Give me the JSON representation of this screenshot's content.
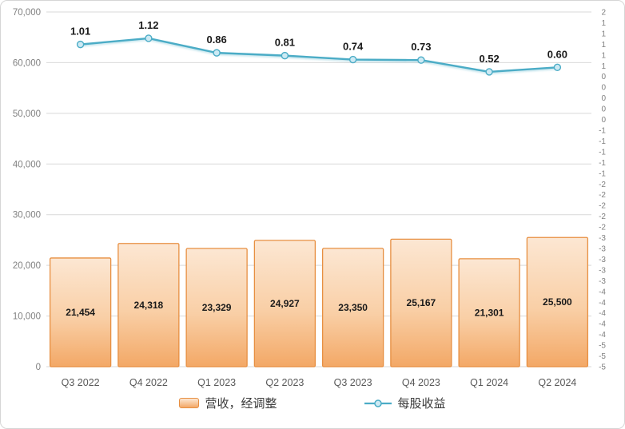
{
  "chart_data": {
    "type": "combo",
    "subtype": [
      "bar",
      "line"
    ],
    "title": "",
    "categories": [
      "Q3 2022",
      "Q4 2022",
      "Q1 2023",
      "Q2 2023",
      "Q3 2023",
      "Q4 2023",
      "Q1 2024",
      "Q2 2024"
    ],
    "series": [
      {
        "name": "营收，经调整",
        "type": "bar",
        "axis": "left",
        "values": [
          21454,
          24318,
          23329,
          24927,
          23350,
          25167,
          21301,
          25500
        ],
        "labels": [
          "21,454",
          "24,318",
          "23,329",
          "24,927",
          "23,350",
          "25,167",
          "21,301",
          "25,500"
        ]
      },
      {
        "name": "每股收益",
        "type": "line",
        "axis": "right",
        "values": [
          1.01,
          1.12,
          0.86,
          0.81,
          0.74,
          0.73,
          0.52,
          0.6
        ],
        "labels": [
          "1.01",
          "1.12",
          "0.86",
          "0.81",
          "0.74",
          "0.73",
          "0.52",
          "0.60"
        ]
      }
    ],
    "left_axis": {
      "min": 0,
      "max": 70000,
      "step": 10000,
      "tick_labels_top_to_bottom": [
        "70,000",
        "60,000",
        "50,000",
        "40,000",
        "30,000",
        "20,000",
        "10,000",
        "0"
      ]
    },
    "right_axis": {
      "plot_max": 1.59,
      "plot_min": -4.75,
      "tick_labels_top_to_bottom": [
        "2",
        "1",
        "1",
        "1",
        "1",
        "1",
        "0",
        "0",
        "0",
        "0",
        "0",
        "-1",
        "-1",
        "-1",
        "-1",
        "-1",
        "-2",
        "-2",
        "-2",
        "-2",
        "-2",
        "-3",
        "-3",
        "-3",
        "-3",
        "-3",
        "-4",
        "-4",
        "-4",
        "-4",
        "-4",
        "-5",
        "-5",
        "-5"
      ]
    },
    "grid": true,
    "legend_position": "bottom",
    "colors": {
      "bar_fill_top": "#fce7d3",
      "bar_fill_mid": "#f9cfa6",
      "bar_fill_bottom": "#f3a866",
      "bar_border": "#e78f41",
      "line": "#4bacc6",
      "marker_fill": "#cdeaf4",
      "grid": "#d9d9d9",
      "axis_text": "#808080",
      "category_text": "#595959",
      "data_label": "#1a1a1a"
    }
  }
}
